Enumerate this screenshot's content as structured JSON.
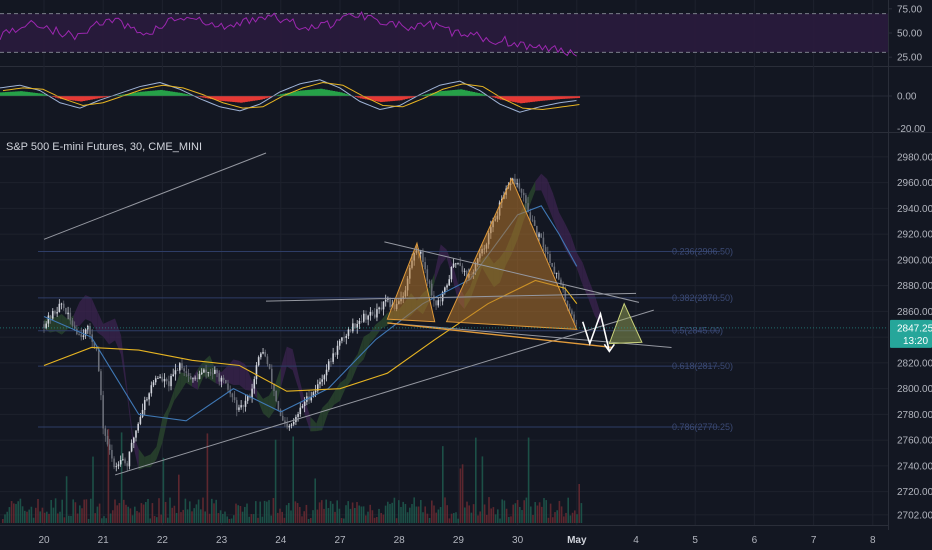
{
  "title": "S&P 500 E-mini Futures, 30, CME_MINI",
  "colors": {
    "background": "#131722",
    "grid": "#1e222d",
    "text": "#b2b5be",
    "candle_up": "#d1d4dc",
    "candle_down": "#6a6e78",
    "rsi_line": "#9c27b0",
    "rsi_band": "#2a1b3d",
    "macd_pos": "#26a148",
    "macd_neg": "#e53935",
    "macd_line": "#9fb3d6",
    "signal_line": "#e6b422",
    "ma_slow": "#e6b422",
    "ma_fast": "#3f78b5",
    "fib_line": "#2e3d66",
    "fib_text": "#3b4a75",
    "pattern_fill": "#b5752a",
    "pattern_edge": "#e09a3a",
    "projection_fill": "#a1b25a",
    "price_badge": "#26a69a",
    "arrow": "#ffffff"
  },
  "chart_data": [
    {
      "type": "line",
      "title": "",
      "series": [
        {
          "values": [
            48,
            56,
            60,
            52,
            46,
            58,
            64,
            54,
            50,
            62,
            66,
            60,
            55,
            61,
            68,
            64,
            58,
            56,
            62,
            70,
            66,
            60,
            54,
            58,
            52,
            48,
            44,
            42,
            38,
            34,
            32,
            30
          ]
        }
      ],
      "ylim": [
        20,
        80
      ],
      "hlines": [
        70,
        30
      ],
      "y_tick_labels": [
        "75.00",
        "50.00",
        "25.00"
      ]
    },
    {
      "type": "bar",
      "title": "",
      "series": [
        {
          "values": [
            6,
            8,
            4,
            -5,
            -9,
            -3,
            2,
            7,
            10,
            5,
            -2,
            -8,
            -11,
            -6,
            3,
            9,
            12,
            6,
            -4,
            -10,
            -7,
            1,
            8,
            11,
            4,
            -6,
            -12,
            -8,
            -5,
            -3
          ]
        },
        {
          "values": [
            4,
            6,
            5,
            -2,
            -7,
            -5,
            0,
            5,
            8,
            6,
            1,
            -5,
            -9,
            -8,
            0,
            6,
            10,
            8,
            0,
            -7,
            -8,
            -2,
            5,
            9,
            7,
            -2,
            -9,
            -10,
            -8,
            -6
          ]
        }
      ],
      "y_tick_labels": [
        "0.00",
        "-20.00"
      ]
    },
    {
      "type": "line",
      "title": "S&P 500 E-mini Futures, 30, CME_MINI",
      "x_tick_labels": [
        "20",
        "21",
        "22",
        "23",
        "24",
        "27",
        "28",
        "29",
        "30",
        "May",
        "4",
        "5",
        "6",
        "7",
        "8"
      ],
      "y_tick_labels": [
        "2980.00",
        "2960.00",
        "2940.00",
        "2920.00",
        "2900.00",
        "2880.00",
        "2860.00",
        "2840.00",
        "2820.00",
        "2800.00",
        "2780.00",
        "2760.00",
        "2740.00",
        "2720.00",
        "2702.00"
      ],
      "ylim": [
        2698,
        2990
      ],
      "price_path": [
        [
          0,
          2850
        ],
        [
          0.15,
          2858
        ],
        [
          0.3,
          2866
        ],
        [
          0.45,
          2852
        ],
        [
          0.6,
          2842
        ],
        [
          0.75,
          2846
        ],
        [
          0.9,
          2828
        ],
        [
          1.0,
          2770
        ],
        [
          1.1,
          2752
        ],
        [
          1.2,
          2738
        ],
        [
          1.3,
          2748
        ],
        [
          1.4,
          2740
        ],
        [
          1.5,
          2760
        ],
        [
          1.7,
          2790
        ],
        [
          1.9,
          2810
        ],
        [
          2.1,
          2803
        ],
        [
          2.3,
          2820
        ],
        [
          2.5,
          2806
        ],
        [
          2.7,
          2813
        ],
        [
          2.9,
          2812
        ],
        [
          3.1,
          2800
        ],
        [
          3.3,
          2782
        ],
        [
          3.5,
          2797
        ],
        [
          3.6,
          2820
        ],
        [
          3.7,
          2830
        ],
        [
          3.8,
          2815
        ],
        [
          3.9,
          2795
        ],
        [
          4.0,
          2777
        ],
        [
          4.1,
          2768
        ],
        [
          4.2,
          2772
        ],
        [
          4.4,
          2790
        ],
        [
          4.6,
          2800
        ],
        [
          4.8,
          2818
        ],
        [
          5.0,
          2836
        ],
        [
          5.2,
          2848
        ],
        [
          5.4,
          2856
        ],
        [
          5.6,
          2858
        ],
        [
          5.8,
          2868
        ],
        [
          5.9,
          2862
        ],
        [
          6.0,
          2870
        ],
        [
          6.1,
          2875
        ],
        [
          6.2,
          2898
        ],
        [
          6.3,
          2910
        ],
        [
          6.4,
          2900
        ],
        [
          6.5,
          2882
        ],
        [
          6.6,
          2866
        ],
        [
          6.7,
          2868
        ],
        [
          6.8,
          2880
        ],
        [
          6.9,
          2895
        ],
        [
          7.0,
          2900
        ],
        [
          7.1,
          2890
        ],
        [
          7.2,
          2886
        ],
        [
          7.3,
          2898
        ],
        [
          7.4,
          2906
        ],
        [
          7.5,
          2918
        ],
        [
          7.6,
          2930
        ],
        [
          7.7,
          2942
        ],
        [
          7.8,
          2952
        ],
        [
          7.9,
          2963
        ],
        [
          8.0,
          2958
        ],
        [
          8.1,
          2948
        ],
        [
          8.2,
          2935
        ],
        [
          8.3,
          2922
        ],
        [
          8.4,
          2915
        ],
        [
          8.5,
          2905
        ],
        [
          8.6,
          2894
        ],
        [
          8.7,
          2884
        ],
        [
          8.8,
          2870
        ],
        [
          8.9,
          2860
        ],
        [
          9.0,
          2848
        ]
      ],
      "moving_average_slow": [
        [
          0.0,
          2818
        ],
        [
          0.8,
          2832
        ],
        [
          1.6,
          2830
        ],
        [
          2.5,
          2822
        ],
        [
          3.3,
          2818
        ],
        [
          4.1,
          2798
        ],
        [
          5.0,
          2800
        ],
        [
          5.8,
          2812
        ],
        [
          6.6,
          2838
        ],
        [
          7.5,
          2866
        ],
        [
          8.3,
          2884
        ],
        [
          8.8,
          2878
        ],
        [
          9.0,
          2866
        ]
      ],
      "moving_average_fast": [
        [
          0.0,
          2856
        ],
        [
          0.8,
          2840
        ],
        [
          1.6,
          2780
        ],
        [
          2.4,
          2775
        ],
        [
          3.2,
          2800
        ],
        [
          4.0,
          2782
        ],
        [
          4.8,
          2800
        ],
        [
          5.6,
          2838
        ],
        [
          6.4,
          2866
        ],
        [
          7.2,
          2885
        ],
        [
          8.0,
          2935
        ],
        [
          8.4,
          2942
        ],
        [
          8.7,
          2920
        ],
        [
          9.0,
          2895
        ]
      ],
      "fib_levels": [
        {
          "level": 0.236,
          "price": 2906.5,
          "label": "0.236(2906.50)"
        },
        {
          "level": 0.382,
          "price": 2870.5,
          "label": "0.382(2870.50)"
        },
        {
          "level": 0.5,
          "price": 2845,
          "label": "0.5(2845.00)"
        },
        {
          "level": 0.618,
          "price": 2817.5,
          "label": "0.618(2817.50)"
        },
        {
          "level": 0.786,
          "price": 2770.25,
          "label": "0.786(2770.25)"
        }
      ],
      "trendlines": [
        [
          [
            0,
            2916
          ],
          [
            3.75,
            2983
          ]
        ],
        [
          [
            1.2,
            2733
          ],
          [
            10.3,
            2861
          ]
        ],
        [
          [
            3.75,
            2868
          ],
          [
            10.0,
            2874
          ]
        ],
        [
          [
            5.75,
            2914
          ],
          [
            10.05,
            2867
          ]
        ],
        [
          [
            5.8,
            2851
          ],
          [
            10.6,
            2832
          ]
        ]
      ],
      "head_and_shoulders": {
        "left_shoulder": [
          [
            5.8,
            2854
          ],
          [
            6.3,
            2913
          ],
          [
            6.6,
            2852
          ]
        ],
        "head": [
          [
            6.8,
            2852
          ],
          [
            7.9,
            2963
          ],
          [
            9.0,
            2846
          ]
        ]
      },
      "projection_triangle": [
        [
          9.55,
          2835
        ],
        [
          9.8,
          2866
        ],
        [
          10.1,
          2836
        ]
      ],
      "projection_arrow": [
        [
          9.1,
          2852
        ],
        [
          9.22,
          2835
        ],
        [
          9.4,
          2858
        ],
        [
          9.55,
          2829
        ]
      ],
      "last_price": "2847.25",
      "countdown": "13:20"
    }
  ]
}
